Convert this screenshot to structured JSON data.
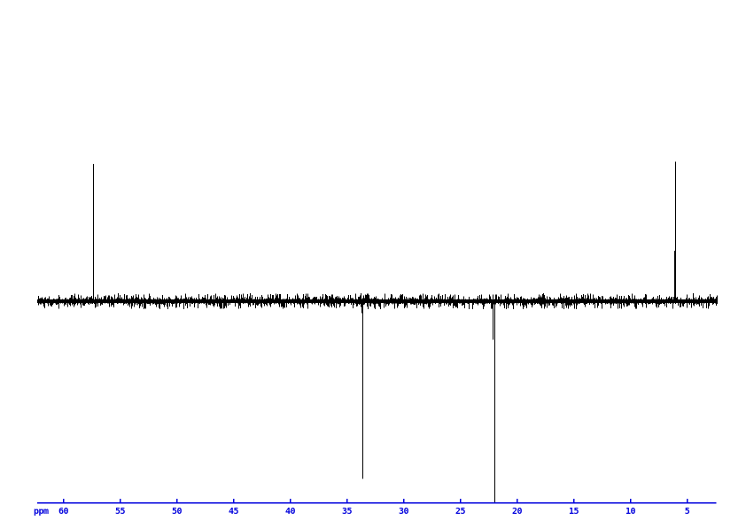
{
  "chart_data": {
    "type": "line",
    "subtype": "dept-nmr-spectrum",
    "title": "",
    "xlabel": "ppm",
    "ylabel": "",
    "grid": false,
    "legend": false,
    "background_color": "#ffffff",
    "trace_color": "#000000",
    "x_axis": {
      "unit_label": "ppm",
      "ticks": [
        60,
        55,
        50,
        45,
        40,
        35,
        30,
        25,
        20,
        15,
        10,
        5
      ],
      "range_ppm": [
        62.3,
        2.4
      ],
      "direction": "decreasing-to-the-right",
      "color": "#0000dd"
    },
    "baseline_intensity": 0,
    "noise_amplitude": 0.03,
    "peaks": [
      {
        "ppm": 57.4,
        "intensity": 0.68,
        "phase": "positive"
      },
      {
        "ppm": 33.7,
        "intensity": -0.06,
        "phase": "negative"
      },
      {
        "ppm": 33.6,
        "intensity": -0.88,
        "phase": "negative"
      },
      {
        "ppm": 22.1,
        "intensity": -0.19,
        "phase": "negative"
      },
      {
        "ppm": 22.0,
        "intensity": -1.0,
        "phase": "negative"
      },
      {
        "ppm": 6.1,
        "intensity": 0.25,
        "phase": "positive"
      },
      {
        "ppm": 6.0,
        "intensity": 0.69,
        "phase": "positive"
      }
    ]
  }
}
